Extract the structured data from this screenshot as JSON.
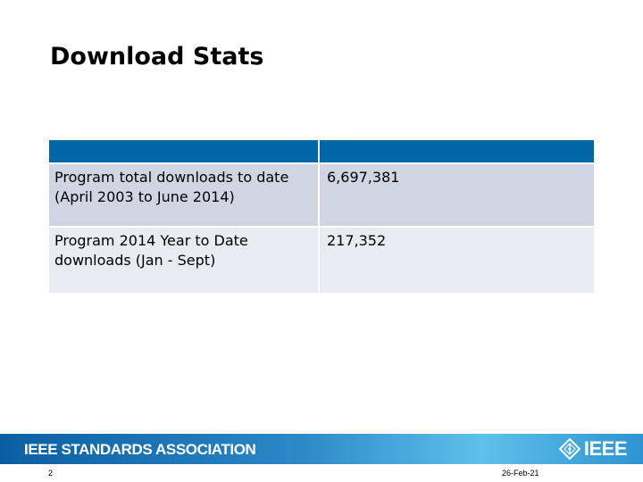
{
  "slide": {
    "title": "Download Stats",
    "page_number": "2",
    "date": "26-Feb-21"
  },
  "table": {
    "headers": [
      "",
      ""
    ],
    "rows": [
      {
        "label": "Program total downloads to date (April 2003 to June 2014)",
        "value": "6,697,381"
      },
      {
        "label": "Program 2014 Year to Date downloads (Jan - Sept)",
        "value": "217,352"
      }
    ]
  },
  "footer": {
    "organization": "IEEE STANDARDS ASSOCIATION",
    "logo_text": "IEEE",
    "logo_icon": "ieee-diamond-icon",
    "colors": {
      "header_blue": "#0067a6",
      "row_dark": "#cfd5e2",
      "row_light": "#e8ebf1",
      "bar_start": "#0a5fa2",
      "bar_end": "#5fc0ec"
    }
  }
}
